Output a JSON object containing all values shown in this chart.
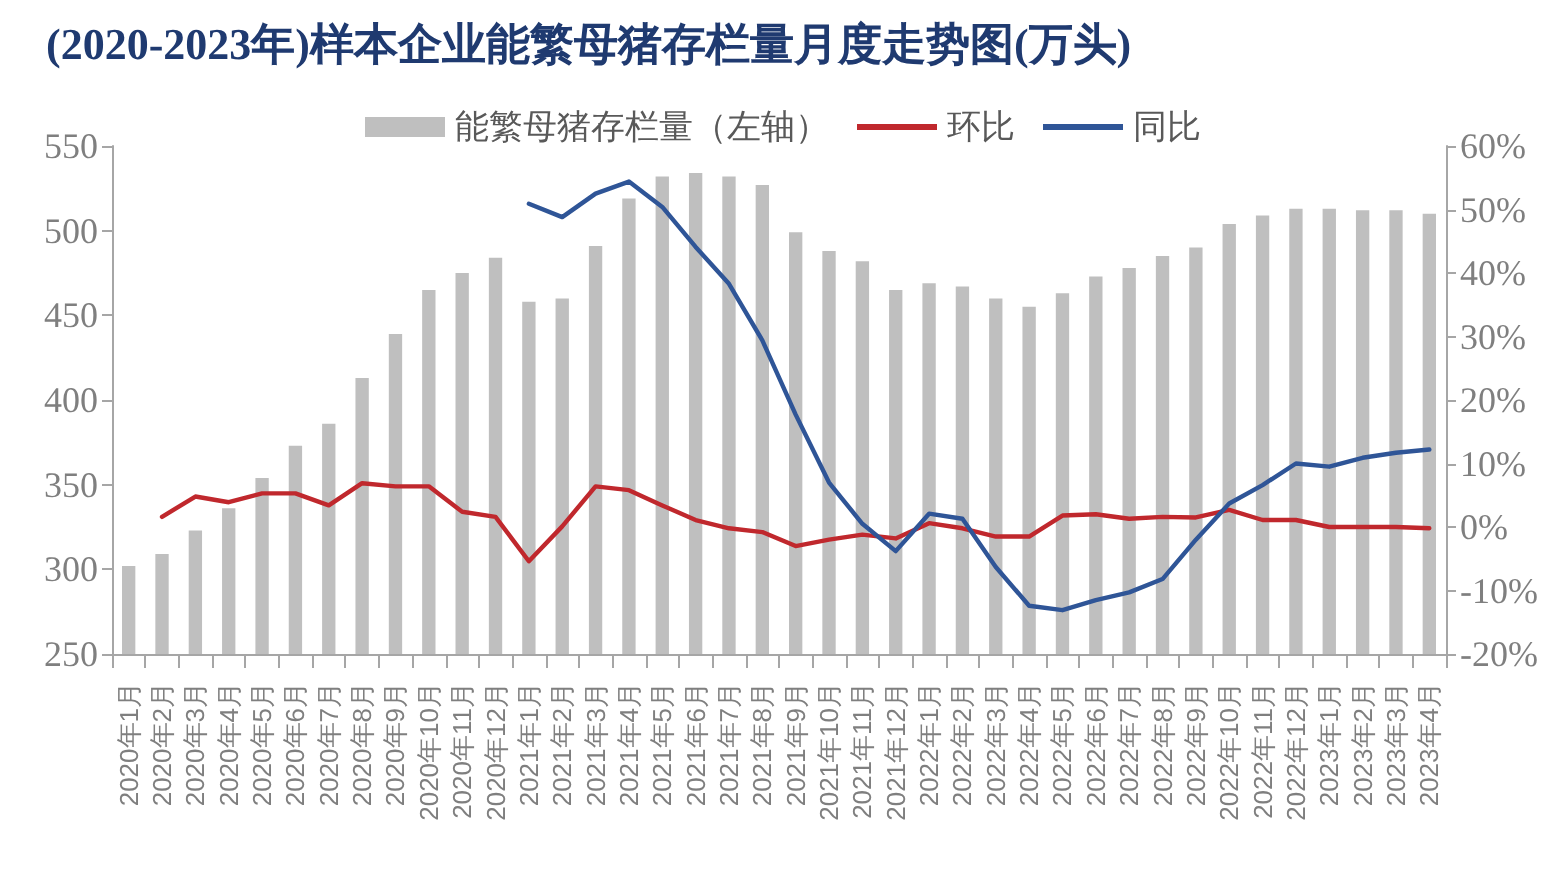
{
  "chart_data": {
    "type": "bar",
    "title": "(2020-2023年)样本企业能繁母猪存栏量月度走势图(万头)",
    "categories": [
      "2020年1月",
      "2020年2月",
      "2020年3月",
      "2020年4月",
      "2020年5月",
      "2020年6月",
      "2020年7月",
      "2020年8月",
      "2020年9月",
      "2020年10月",
      "2020年11月",
      "2020年12月",
      "2021年1月",
      "2021年2月",
      "2021年3月",
      "2021年4月",
      "2021年5月",
      "2021年6月",
      "2021年7月",
      "2021年8月",
      "2021年9月",
      "2021年10月",
      "2021年11月",
      "2021年12月",
      "2022年1月",
      "2022年2月",
      "2022年3月",
      "2022年4月",
      "2022年5月",
      "2022年6月",
      "2022年7月",
      "2022年8月",
      "2022年9月",
      "2022年10月",
      "2022年11月",
      "2022年12月",
      "2023年1月",
      "2023年2月",
      "2023年3月",
      "2023年4月"
    ],
    "series": [
      {
        "name": "能繁母猪存栏量（左轴）",
        "color": "#bfbfbf",
        "values": [
          302,
          309,
          323,
          336,
          354,
          373,
          386,
          413,
          439,
          465,
          475,
          484,
          458,
          460,
          491,
          519,
          532,
          534,
          532,
          527,
          499,
          488,
          482,
          465,
          469,
          467,
          460,
          455,
          463,
          473,
          478,
          485,
          490,
          504,
          509,
          513,
          513,
          512,
          512,
          510
        ]
      },
      {
        "name": "环比",
        "type": "line",
        "axis": "y2",
        "color": "#c0282d",
        "values": [
          null,
          1.6,
          4.8,
          3.9,
          5.3,
          5.3,
          3.4,
          6.9,
          6.4,
          6.4,
          2.4,
          1.6,
          -5.4,
          0.1,
          6.4,
          5.8,
          3.4,
          1.1,
          -0.2,
          -0.8,
          -3.0,
          -2.0,
          -1.2,
          -1.8,
          0.6,
          -0.2,
          -1.5,
          -1.5,
          1.8,
          2.0,
          1.3,
          1.6,
          1.5,
          2.7,
          1.1,
          1.1,
          0.0,
          0.0,
          0.0,
          -0.2
        ]
      },
      {
        "name": "同比",
        "type": "line",
        "axis": "y2",
        "color": "#2f5597",
        "values": [
          null,
          null,
          null,
          null,
          null,
          null,
          null,
          null,
          null,
          null,
          null,
          null,
          50.9,
          48.8,
          52.5,
          54.4,
          50.4,
          44.1,
          38.3,
          29.4,
          17.7,
          7.0,
          0.5,
          -3.8,
          2.1,
          1.3,
          -6.3,
          -12.4,
          -13.1,
          -11.5,
          -10.3,
          -8.2,
          -2.0,
          3.7,
          6.6,
          10.0,
          9.5,
          10.9,
          11.7,
          12.2
        ]
      }
    ],
    "ylim": [
      250,
      550
    ],
    "yticks": [
      250,
      300,
      350,
      400,
      450,
      500,
      550
    ],
    "y2lim": [
      -20,
      60
    ],
    "y2ticks": [
      {
        "value": -20,
        "label": "-20%"
      },
      {
        "value": -10,
        "label": "-10%"
      },
      {
        "value": 0,
        "label": "0%"
      },
      {
        "value": 10,
        "label": "10%"
      },
      {
        "value": 20,
        "label": "20%"
      },
      {
        "value": 30,
        "label": "30%"
      },
      {
        "value": 40,
        "label": "40%"
      },
      {
        "value": 50,
        "label": "50%"
      },
      {
        "value": 60,
        "label": "60%"
      }
    ],
    "legend": "top",
    "marker": "none",
    "line_style": "solid",
    "grid": false
  }
}
